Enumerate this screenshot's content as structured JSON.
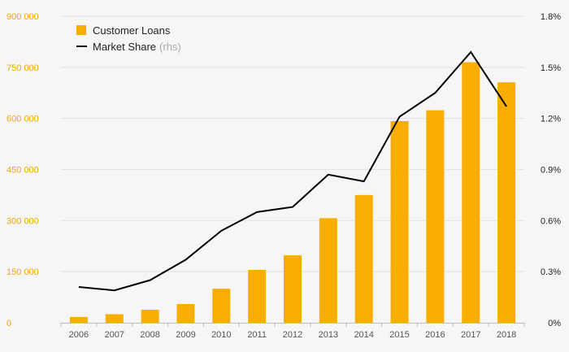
{
  "chart_data": {
    "type": "bar",
    "categories": [
      "2006",
      "2007",
      "2008",
      "2009",
      "2010",
      "2011",
      "2012",
      "2013",
      "2014",
      "2015",
      "2016",
      "2017",
      "2018"
    ],
    "series": [
      {
        "name": "Customer Loans",
        "type": "bar",
        "axis": "left",
        "color": "#f8ae00",
        "values": [
          17000,
          25000,
          38000,
          55000,
          100000,
          155000,
          198000,
          307000,
          375000,
          592000,
          624000,
          765000,
          706000
        ]
      },
      {
        "name": "Market Share",
        "suffix": "(rhs)",
        "type": "line",
        "axis": "right",
        "color": "#000000",
        "values": [
          0.21,
          0.19,
          0.25,
          0.37,
          0.54,
          0.65,
          0.68,
          0.87,
          0.83,
          1.21,
          1.35,
          1.59,
          1.27
        ]
      }
    ],
    "y_left": {
      "ticks": [
        "0",
        "150 000",
        "300 000",
        "450 000",
        "600 000",
        "750 000",
        "900 000"
      ],
      "values": [
        0,
        150000,
        300000,
        450000,
        600000,
        750000,
        900000
      ],
      "range": [
        0,
        900000
      ],
      "color": "#f2a900"
    },
    "y_right": {
      "ticks": [
        "0%",
        "0.3%",
        "0.6%",
        "0.9%",
        "1.2%",
        "1.5%",
        "1.8%"
      ],
      "values": [
        0,
        0.3,
        0.6,
        0.9,
        1.2,
        1.5,
        1.8
      ],
      "range": [
        0,
        1.8
      ]
    },
    "grid": true,
    "legend_position": "top-left",
    "title": "",
    "xlabel": "",
    "ylabel": ""
  }
}
